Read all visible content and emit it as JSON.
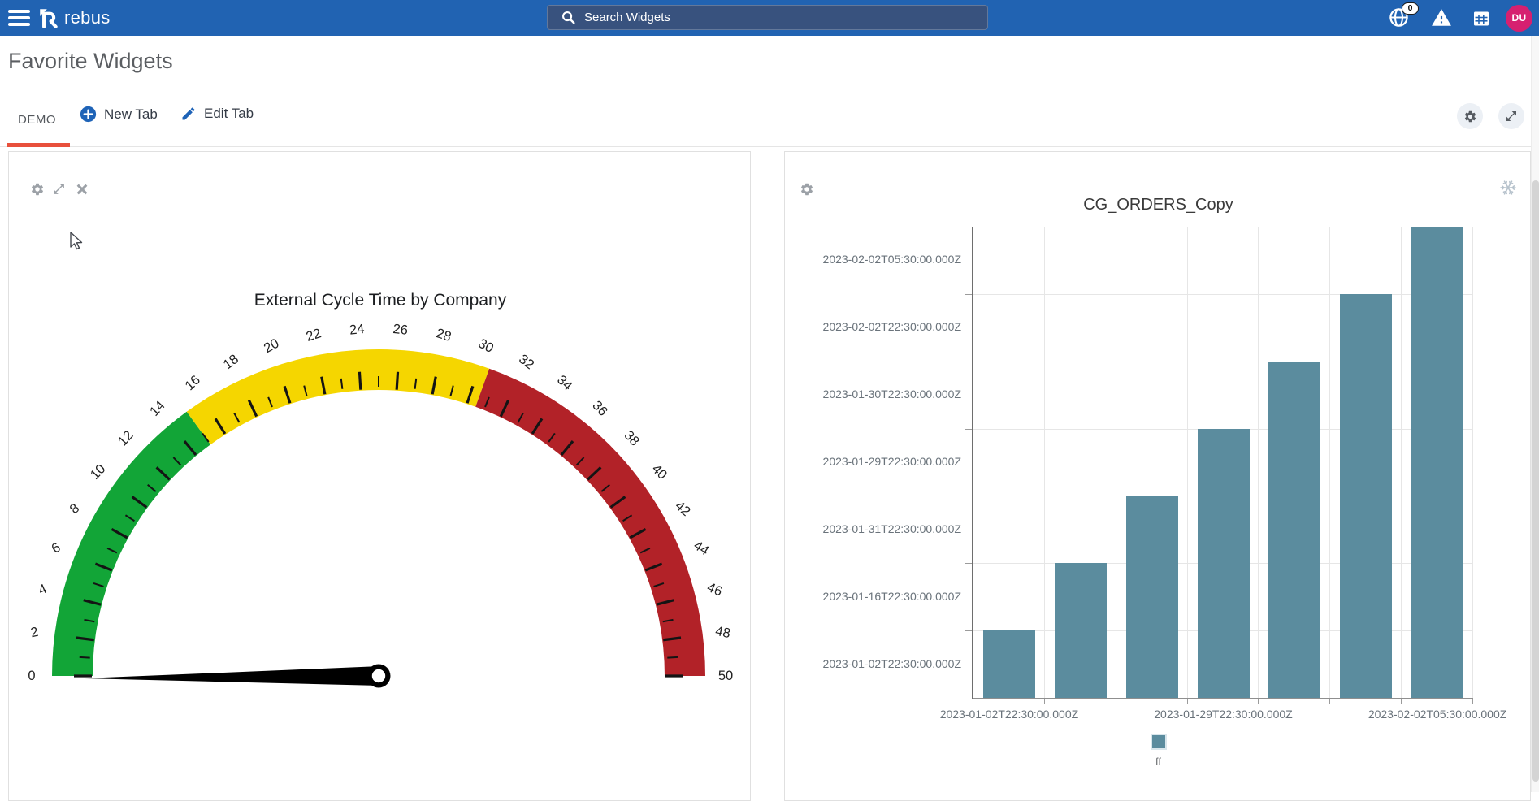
{
  "navbar": {
    "brand": "rebus",
    "search_placeholder": "Search Widgets",
    "badge_count": "0",
    "avatar_initials": "DU",
    "colors": {
      "bar": "#2163B2",
      "search_bg": "#38527E",
      "avatar": "#D62070"
    }
  },
  "page": {
    "title": "Favorite Widgets"
  },
  "tabs": {
    "demo_label": "DEMO",
    "new_tab_label": "New Tab",
    "edit_tab_label": "Edit Tab",
    "active_underline_color": "#E8503C"
  },
  "chart_data": [
    {
      "type": "gauge",
      "title": "External Cycle Time by Company",
      "min": 0,
      "max": 50,
      "tick_step": 1,
      "label_step": 2,
      "value": 0,
      "bands": [
        {
          "from": 0,
          "to": 15,
          "color": "#12A537"
        },
        {
          "from": 15,
          "to": 30.5,
          "color": "#F5D600"
        },
        {
          "from": 30.5,
          "to": 50,
          "color": "#B22228"
        }
      ]
    },
    {
      "type": "bar",
      "title": "CG_ORDERS_Copy",
      "legend": [
        "ff"
      ],
      "series_color": "#5B8C9E",
      "grid": true,
      "legend_position": "bottom",
      "y_axis_tick_labels": [
        "2023-02-02T05:30:00.000Z",
        "2023-02-02T22:30:00.000Z",
        "2023-01-30T22:30:00.000Z",
        "2023-01-29T22:30:00.000Z",
        "2023-01-31T22:30:00.000Z",
        "2023-01-16T22:30:00.000Z",
        "2023-01-02T22:30:00.000Z"
      ],
      "x_axis_tick_labels": [
        "2023-01-02T22:30:00.000Z",
        "2023-01-29T22:30:00.000Z",
        "2023-02-02T05:30:00.000Z"
      ],
      "x_tick_positions": [
        0,
        3,
        6
      ],
      "bar_heights_grid_units": [
        1,
        2,
        3,
        4,
        5,
        6,
        7
      ]
    }
  ]
}
